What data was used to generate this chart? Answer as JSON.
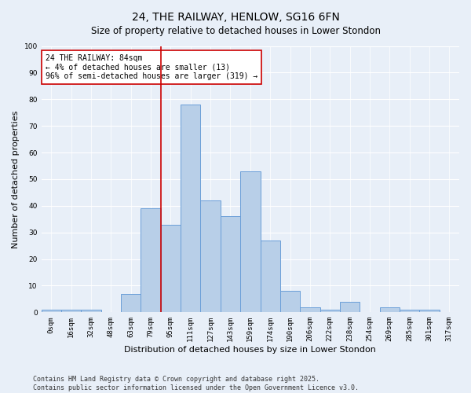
{
  "title": "24, THE RAILWAY, HENLOW, SG16 6FN",
  "subtitle": "Size of property relative to detached houses in Lower Stondon",
  "xlabel": "Distribution of detached houses by size in Lower Stondon",
  "ylabel": "Number of detached properties",
  "bar_labels": [
    "0sqm",
    "16sqm",
    "32sqm",
    "48sqm",
    "63sqm",
    "79sqm",
    "95sqm",
    "111sqm",
    "127sqm",
    "143sqm",
    "159sqm",
    "174sqm",
    "190sqm",
    "206sqm",
    "222sqm",
    "238sqm",
    "254sqm",
    "269sqm",
    "285sqm",
    "301sqm",
    "317sqm"
  ],
  "bar_values": [
    1,
    1,
    1,
    0,
    7,
    39,
    33,
    78,
    42,
    36,
    53,
    27,
    8,
    2,
    1,
    4,
    0,
    2,
    1,
    1,
    0
  ],
  "bar_color": "#b8cfe8",
  "bar_edge_color": "#6a9fd8",
  "vline_x_idx": 5,
  "vline_color": "#cc0000",
  "annotation_text": "24 THE RAILWAY: 84sqm\n← 4% of detached houses are smaller (13)\n96% of semi-detached houses are larger (319) →",
  "annotation_box_color": "#ffffff",
  "annotation_box_edge": "#cc0000",
  "ylim": [
    0,
    100
  ],
  "yticks": [
    0,
    10,
    20,
    30,
    40,
    50,
    60,
    70,
    80,
    90,
    100
  ],
  "background_color": "#e8eff8",
  "grid_color": "#ffffff",
  "footer": "Contains HM Land Registry data © Crown copyright and database right 2025.\nContains public sector information licensed under the Open Government Licence v3.0.",
  "title_fontsize": 10,
  "subtitle_fontsize": 8.5,
  "axis_label_fontsize": 8,
  "tick_fontsize": 6.5,
  "annotation_fontsize": 7,
  "footer_fontsize": 6,
  "ylabel_fontsize": 8
}
